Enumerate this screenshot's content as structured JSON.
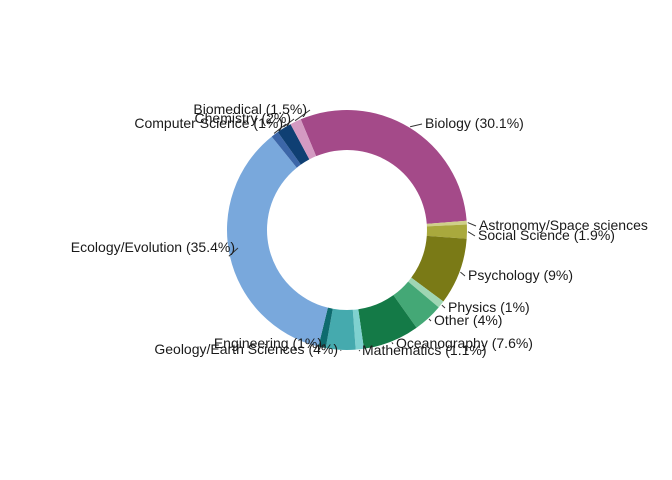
{
  "chart_data": {
    "type": "donut",
    "title": "",
    "slices": [
      {
        "label": "Biology (30.1%)",
        "value": 30.1,
        "color": "#a44a89"
      },
      {
        "label": "Astronomy/Space sciences",
        "value": 0.5,
        "color": "#cfd089"
      },
      {
        "label": "Social Science (1.9%)",
        "value": 1.9,
        "color": "#a9a93d"
      },
      {
        "label": "Psychology (9%)",
        "value": 9.0,
        "color": "#7a7a16"
      },
      {
        "label": "Physics (1%)",
        "value": 1.0,
        "color": "#9fd6b3"
      },
      {
        "label": "Other (4%)",
        "value": 4.0,
        "color": "#44a876"
      },
      {
        "label": "Oceanography (7.6%)",
        "value": 7.6,
        "color": "#147a47"
      },
      {
        "label": "Mathematics (1.1%)",
        "value": 1.1,
        "color": "#7fd1d0"
      },
      {
        "label": "Geology/Earth Sciences (4%)",
        "value": 4.0,
        "color": "#45aaae"
      },
      {
        "label": "Engineering (1%)",
        "value": 1.0,
        "color": "#0e6b6e"
      },
      {
        "label": "Ecology/Evolution (35.4%)",
        "value": 35.4,
        "color": "#79a8dc"
      },
      {
        "label": "Computer Science (1%)",
        "value": 1.0,
        "color": "#3c66a8"
      },
      {
        "label": "Chemistry (2%)",
        "value": 2.0,
        "color": "#0f3f73"
      },
      {
        "label": "Biomedical (1.5%)",
        "value": 1.5,
        "color": "#d49ac2"
      }
    ]
  }
}
